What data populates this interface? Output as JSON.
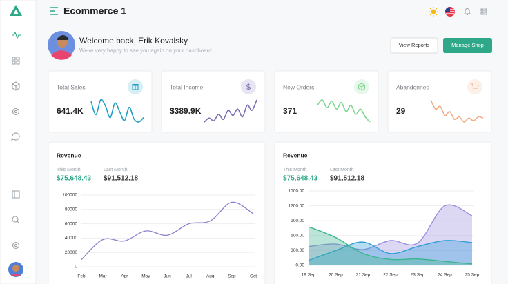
{
  "header": {
    "title": "Ecommerce 1"
  },
  "welcome": {
    "title": "Welcome back, Erik Kovalsky",
    "subtitle": "We're very happy to see you again on your dashboard"
  },
  "buttons": [
    "View Reports",
    "Manage Shop"
  ],
  "stats": [
    {
      "label": "Total Sales",
      "value": "641.4K",
      "color": "#1f9ec2",
      "values": [
        75,
        30,
        80,
        60,
        20,
        70,
        40,
        10,
        55,
        15,
        5,
        20
      ]
    },
    {
      "label": "Total Income",
      "value": "$389.9K",
      "color": "#7b6db3",
      "values": [
        10,
        25,
        15,
        40,
        20,
        55,
        35,
        60,
        30,
        75,
        55,
        95
      ]
    },
    {
      "label": "New Orders",
      "value": "371",
      "color": "#7fd48e",
      "values": [
        70,
        90,
        60,
        85,
        55,
        80,
        45,
        70,
        35,
        55,
        25,
        5
      ]
    },
    {
      "label": "Abandonned",
      "value": "29",
      "color": "#f1ab86",
      "values": [
        95,
        60,
        70,
        35,
        50,
        20,
        30,
        10,
        25,
        15,
        30,
        25
      ]
    }
  ],
  "revenue": [
    {
      "title": "Revenue",
      "this_month_label": "This Month",
      "this_month": "$75,648.43",
      "last_month_label": "Last Month",
      "last_month": "$91,512.18",
      "chart": {
        "type": "line",
        "categories": [
          "Feb",
          "Mar",
          "Apr",
          "May",
          "Jun",
          "Jul",
          "Aug",
          "Sep",
          "Oct"
        ],
        "values": [
          10000,
          38000,
          36000,
          50000,
          44000,
          60000,
          64000,
          90000,
          74000
        ],
        "color": "#8c7fcc",
        "ylim": [
          0,
          100000
        ],
        "yticks": [
          0,
          20000,
          40000,
          60000,
          80000,
          100000
        ],
        "grid": true
      }
    },
    {
      "title": "Revenue",
      "this_month_label": "This Month",
      "this_month": "$75,648.43",
      "last_month_label": "Last Month",
      "last_month": "$91,512.18",
      "chart": {
        "type": "area",
        "categories": [
          "19 Sep",
          "20 Sep",
          "21 Sep",
          "22 Sep",
          "23 Sep",
          "24 Sep",
          "25 Sep"
        ],
        "series": [
          {
            "color": "#9b8fe0",
            "values": [
              380,
              430,
              320,
              500,
              450,
              1200,
              1000
            ]
          },
          {
            "color": "#2f9ed6",
            "values": [
              100,
              300,
              470,
              240,
              380,
              500,
              460
            ]
          },
          {
            "color": "#3bb58e",
            "values": [
              780,
              560,
              240,
              120,
              130,
              80,
              30
            ]
          }
        ],
        "ylim": [
          0,
          1500
        ],
        "yticks": [
          {
            "value": 0,
            "label": "0.00"
          },
          {
            "value": 300,
            "label": "300.00"
          },
          {
            "value": 600,
            "label": "600.00"
          },
          {
            "value": 900,
            "label": "900.00"
          },
          {
            "value": 1200,
            "label": "1200.00"
          },
          {
            "value": 1500,
            "label": "1500.00"
          }
        ],
        "grid": true
      }
    }
  ]
}
